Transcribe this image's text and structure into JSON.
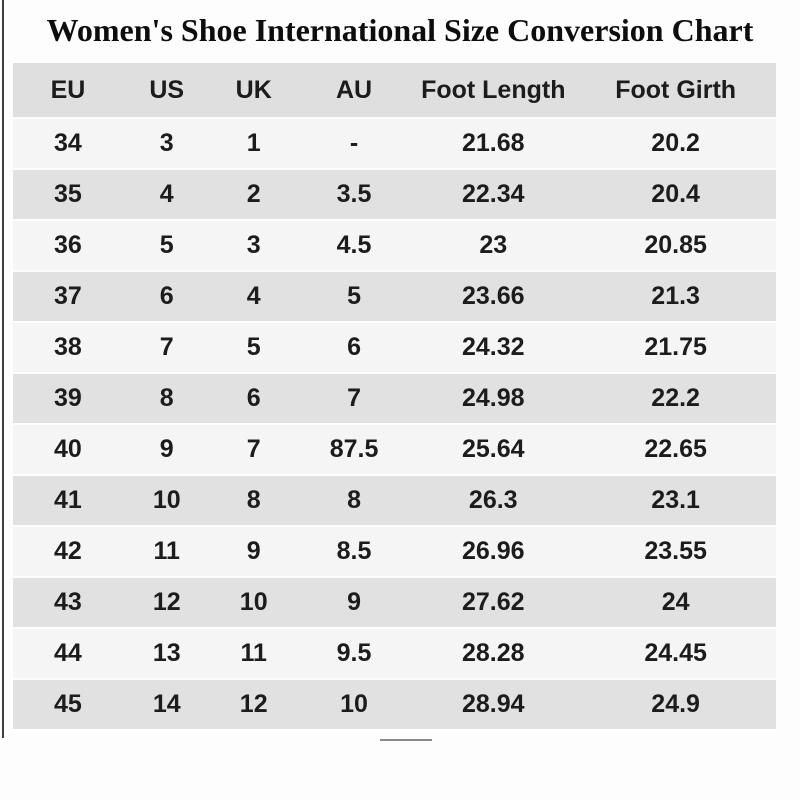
{
  "page": {
    "title": "Women's Shoe International Size Conversion Chart"
  },
  "chart_data": {
    "type": "table",
    "title": "Women's Shoe International Size Conversion Chart",
    "columns": [
      "EU",
      "US",
      "UK",
      "AU",
      "Foot Length",
      "Foot Girth"
    ],
    "rows": [
      [
        "34",
        "3",
        "1",
        "-",
        "21.68",
        "20.2"
      ],
      [
        "35",
        "4",
        "2",
        "3.5",
        "22.34",
        "20.4"
      ],
      [
        "36",
        "5",
        "3",
        "4.5",
        "23",
        "20.85"
      ],
      [
        "37",
        "6",
        "4",
        "5",
        "23.66",
        "21.3"
      ],
      [
        "38",
        "7",
        "5",
        "6",
        "24.32",
        "21.75"
      ],
      [
        "39",
        "8",
        "6",
        "7",
        "24.98",
        "22.2"
      ],
      [
        "40",
        "9",
        "7",
        "87.5",
        "25.64",
        "22.65"
      ],
      [
        "41",
        "10",
        "8",
        "8",
        "26.3",
        "23.1"
      ],
      [
        "42",
        "11",
        "9",
        "8.5",
        "26.96",
        "23.55"
      ],
      [
        "43",
        "12",
        "10",
        "9",
        "27.62",
        "24"
      ],
      [
        "44",
        "13",
        "11",
        "9.5",
        "28.28",
        "24.45"
      ],
      [
        "45",
        "14",
        "12",
        "10",
        "28.94",
        "24.9"
      ]
    ],
    "layout": {
      "header_background": "#dfdfdf",
      "row_stripe_light": "#f5f5f5",
      "row_stripe_dark": "#e1e1e1",
      "text_color": "#1c1c1c",
      "first_row_stripe": "light"
    }
  }
}
